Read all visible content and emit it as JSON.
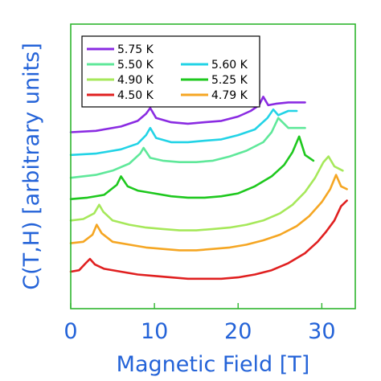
{
  "chart_data": {
    "type": "line",
    "title": "",
    "xlabel": "Magnetic Field [T]",
    "ylabel": "C(T,H) [arbitrary units]",
    "xlim": [
      0,
      34
    ],
    "xticks": [
      0,
      10,
      20,
      30
    ],
    "ylim": [
      0,
      10
    ],
    "grid": false,
    "legend_position": "top-left",
    "series": [
      {
        "name": "5.75 K",
        "color": "#8a2be2",
        "x": [
          0,
          3,
          6,
          8,
          9,
          9.5,
          10.2,
          12,
          14,
          16,
          18,
          20,
          21.5,
          22.5,
          23,
          23.6,
          24.5,
          26,
          28
        ],
        "y": [
          6.2,
          6.25,
          6.4,
          6.6,
          6.85,
          7.05,
          6.7,
          6.55,
          6.5,
          6.55,
          6.6,
          6.75,
          6.95,
          7.15,
          7.45,
          7.15,
          7.2,
          7.25,
          7.25
        ]
      },
      {
        "name": "5.60 K",
        "color": "#22d3e6",
        "x": [
          0,
          3,
          6,
          8,
          9,
          9.5,
          10.2,
          12,
          14,
          16,
          18,
          20,
          22,
          23.5,
          24.2,
          24.8,
          26,
          27
        ],
        "y": [
          5.4,
          5.45,
          5.6,
          5.8,
          6.1,
          6.35,
          6.0,
          5.85,
          5.85,
          5.9,
          5.95,
          6.1,
          6.3,
          6.7,
          7.0,
          6.8,
          6.95,
          6.95
        ]
      },
      {
        "name": "5.50 K",
        "color": "#5fe89a",
        "x": [
          0,
          3,
          5,
          7,
          8.3,
          8.7,
          9.5,
          11,
          13,
          15,
          17,
          19,
          21,
          23,
          24,
          24.8,
          26,
          28
        ],
        "y": [
          4.6,
          4.7,
          4.85,
          5.1,
          5.45,
          5.65,
          5.3,
          5.2,
          5.15,
          5.15,
          5.2,
          5.35,
          5.55,
          5.85,
          6.2,
          6.7,
          6.35,
          6.35
        ]
      },
      {
        "name": "5.25 K",
        "color": "#1ec81e",
        "x": [
          0,
          2,
          4,
          5.5,
          6,
          6.8,
          8,
          10,
          12,
          14,
          16,
          18,
          20,
          22,
          24,
          25.5,
          26.5,
          27.3,
          28,
          29
        ],
        "y": [
          3.85,
          3.9,
          4.0,
          4.35,
          4.65,
          4.3,
          4.15,
          4.05,
          3.95,
          3.9,
          3.9,
          3.95,
          4.05,
          4.3,
          4.65,
          5.05,
          5.5,
          6.05,
          5.4,
          5.2
        ]
      },
      {
        "name": "4.90 K",
        "color": "#a6e85a",
        "x": [
          0,
          1.5,
          2.8,
          3.4,
          3.9,
          5,
          7,
          9,
          11,
          13,
          15,
          17,
          19,
          21,
          23,
          25,
          26.5,
          28,
          29.2,
          30.2,
          30.8,
          31.5,
          32.5
        ],
        "y": [
          3.1,
          3.15,
          3.35,
          3.65,
          3.4,
          3.1,
          2.95,
          2.85,
          2.8,
          2.75,
          2.75,
          2.8,
          2.85,
          2.95,
          3.1,
          3.35,
          3.65,
          4.1,
          4.6,
          5.15,
          5.35,
          5.0,
          4.85
        ]
      },
      {
        "name": "4.79 K",
        "color": "#f5a623",
        "x": [
          0,
          1.5,
          2.6,
          3.1,
          3.7,
          5,
          7,
          9,
          11,
          13,
          15,
          17,
          19,
          21,
          23,
          25,
          27,
          28.5,
          30,
          31,
          31.7,
          32.3,
          33
        ],
        "y": [
          2.3,
          2.35,
          2.6,
          2.95,
          2.65,
          2.35,
          2.25,
          2.15,
          2.1,
          2.05,
          2.05,
          2.1,
          2.15,
          2.25,
          2.4,
          2.6,
          2.9,
          3.25,
          3.75,
          4.2,
          4.7,
          4.3,
          4.2
        ]
      },
      {
        "name": "4.50 K",
        "color": "#e02020",
        "x": [
          0,
          1,
          1.8,
          2.3,
          2.9,
          4,
          6,
          8,
          10,
          12,
          14,
          16,
          18,
          20,
          22,
          24,
          26,
          28,
          29.5,
          30.5,
          31.5,
          32.3,
          33
        ],
        "y": [
          1.3,
          1.35,
          1.6,
          1.75,
          1.55,
          1.4,
          1.3,
          1.2,
          1.15,
          1.1,
          1.05,
          1.05,
          1.05,
          1.1,
          1.2,
          1.35,
          1.6,
          1.95,
          2.35,
          2.7,
          3.1,
          3.6,
          3.8
        ]
      }
    ]
  }
}
